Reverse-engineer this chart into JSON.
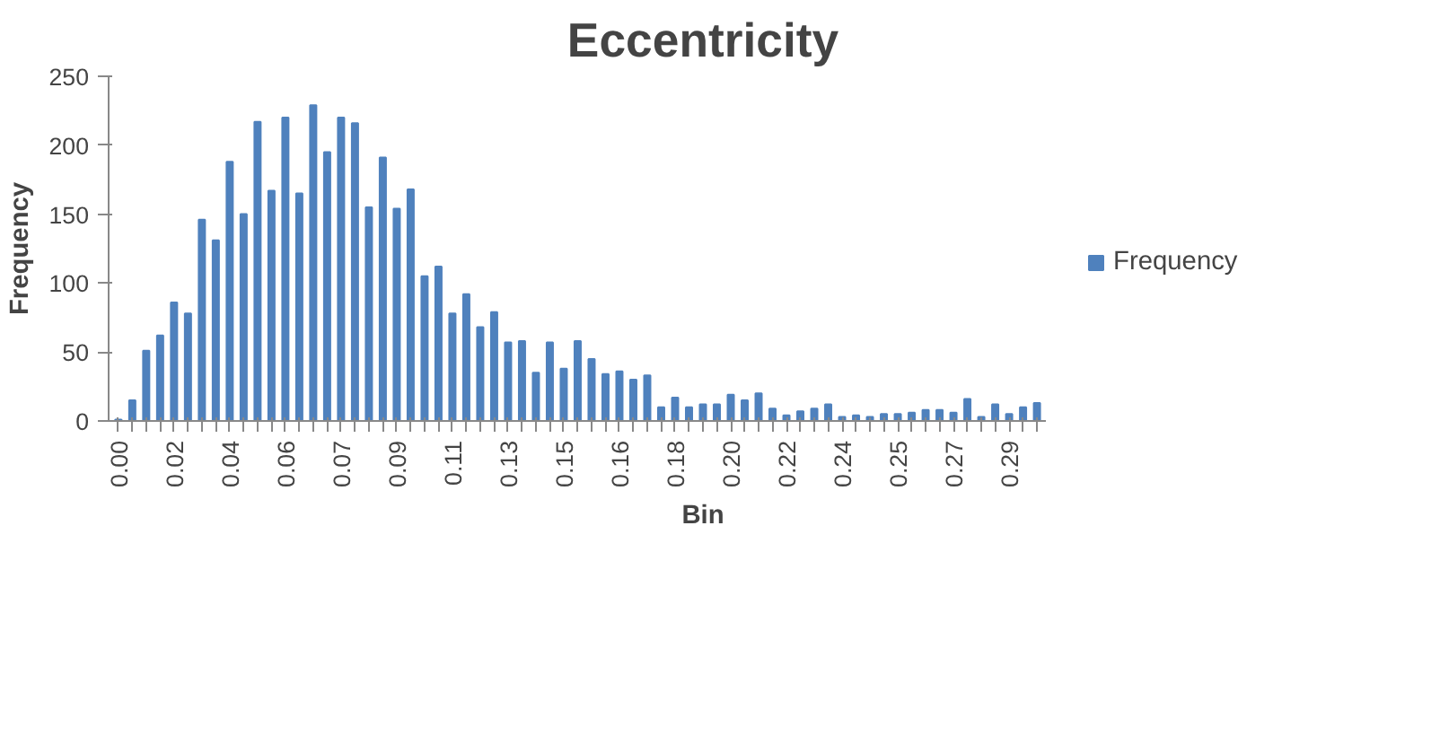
{
  "chart_data": {
    "type": "bar",
    "title": "Eccentricity",
    "xlabel": "Bin",
    "ylabel": "Frequency",
    "categories": [
      "0.00",
      null,
      null,
      null,
      "0.02",
      null,
      null,
      null,
      "0.04",
      null,
      null,
      null,
      "0.06",
      null,
      null,
      null,
      "0.07",
      null,
      null,
      null,
      "0.09",
      null,
      null,
      null,
      "0.11",
      null,
      null,
      null,
      "0.13",
      null,
      null,
      null,
      "0.15",
      null,
      null,
      null,
      "0.16",
      null,
      null,
      null,
      "0.18",
      null,
      null,
      null,
      "0.20",
      null,
      null,
      null,
      "0.22",
      null,
      null,
      null,
      "0.24",
      null,
      null,
      null,
      "0.25",
      null,
      null,
      null,
      "0.27",
      null,
      null,
      null,
      "0.29",
      null,
      null
    ],
    "series": [
      {
        "name": "Frequency",
        "color": "#4f81bd",
        "values": [
          1,
          15,
          51,
          62,
          86,
          78,
          146,
          131,
          188,
          150,
          217,
          167,
          220,
          165,
          229,
          195,
          220,
          216,
          155,
          191,
          154,
          168,
          105,
          112,
          78,
          92,
          68,
          79,
          57,
          58,
          35,
          57,
          38,
          58,
          45,
          34,
          36,
          30,
          33,
          10,
          17,
          10,
          12,
          12,
          19,
          15,
          20,
          9,
          4,
          7,
          9,
          12,
          3,
          4,
          3,
          5,
          5,
          6,
          8,
          8,
          6,
          16,
          3,
          12,
          5,
          10,
          13
        ]
      }
    ],
    "ylim": [
      0,
      250
    ],
    "yticks": [
      0,
      50,
      100,
      150,
      200,
      250
    ],
    "grid": false,
    "legend": "right"
  }
}
